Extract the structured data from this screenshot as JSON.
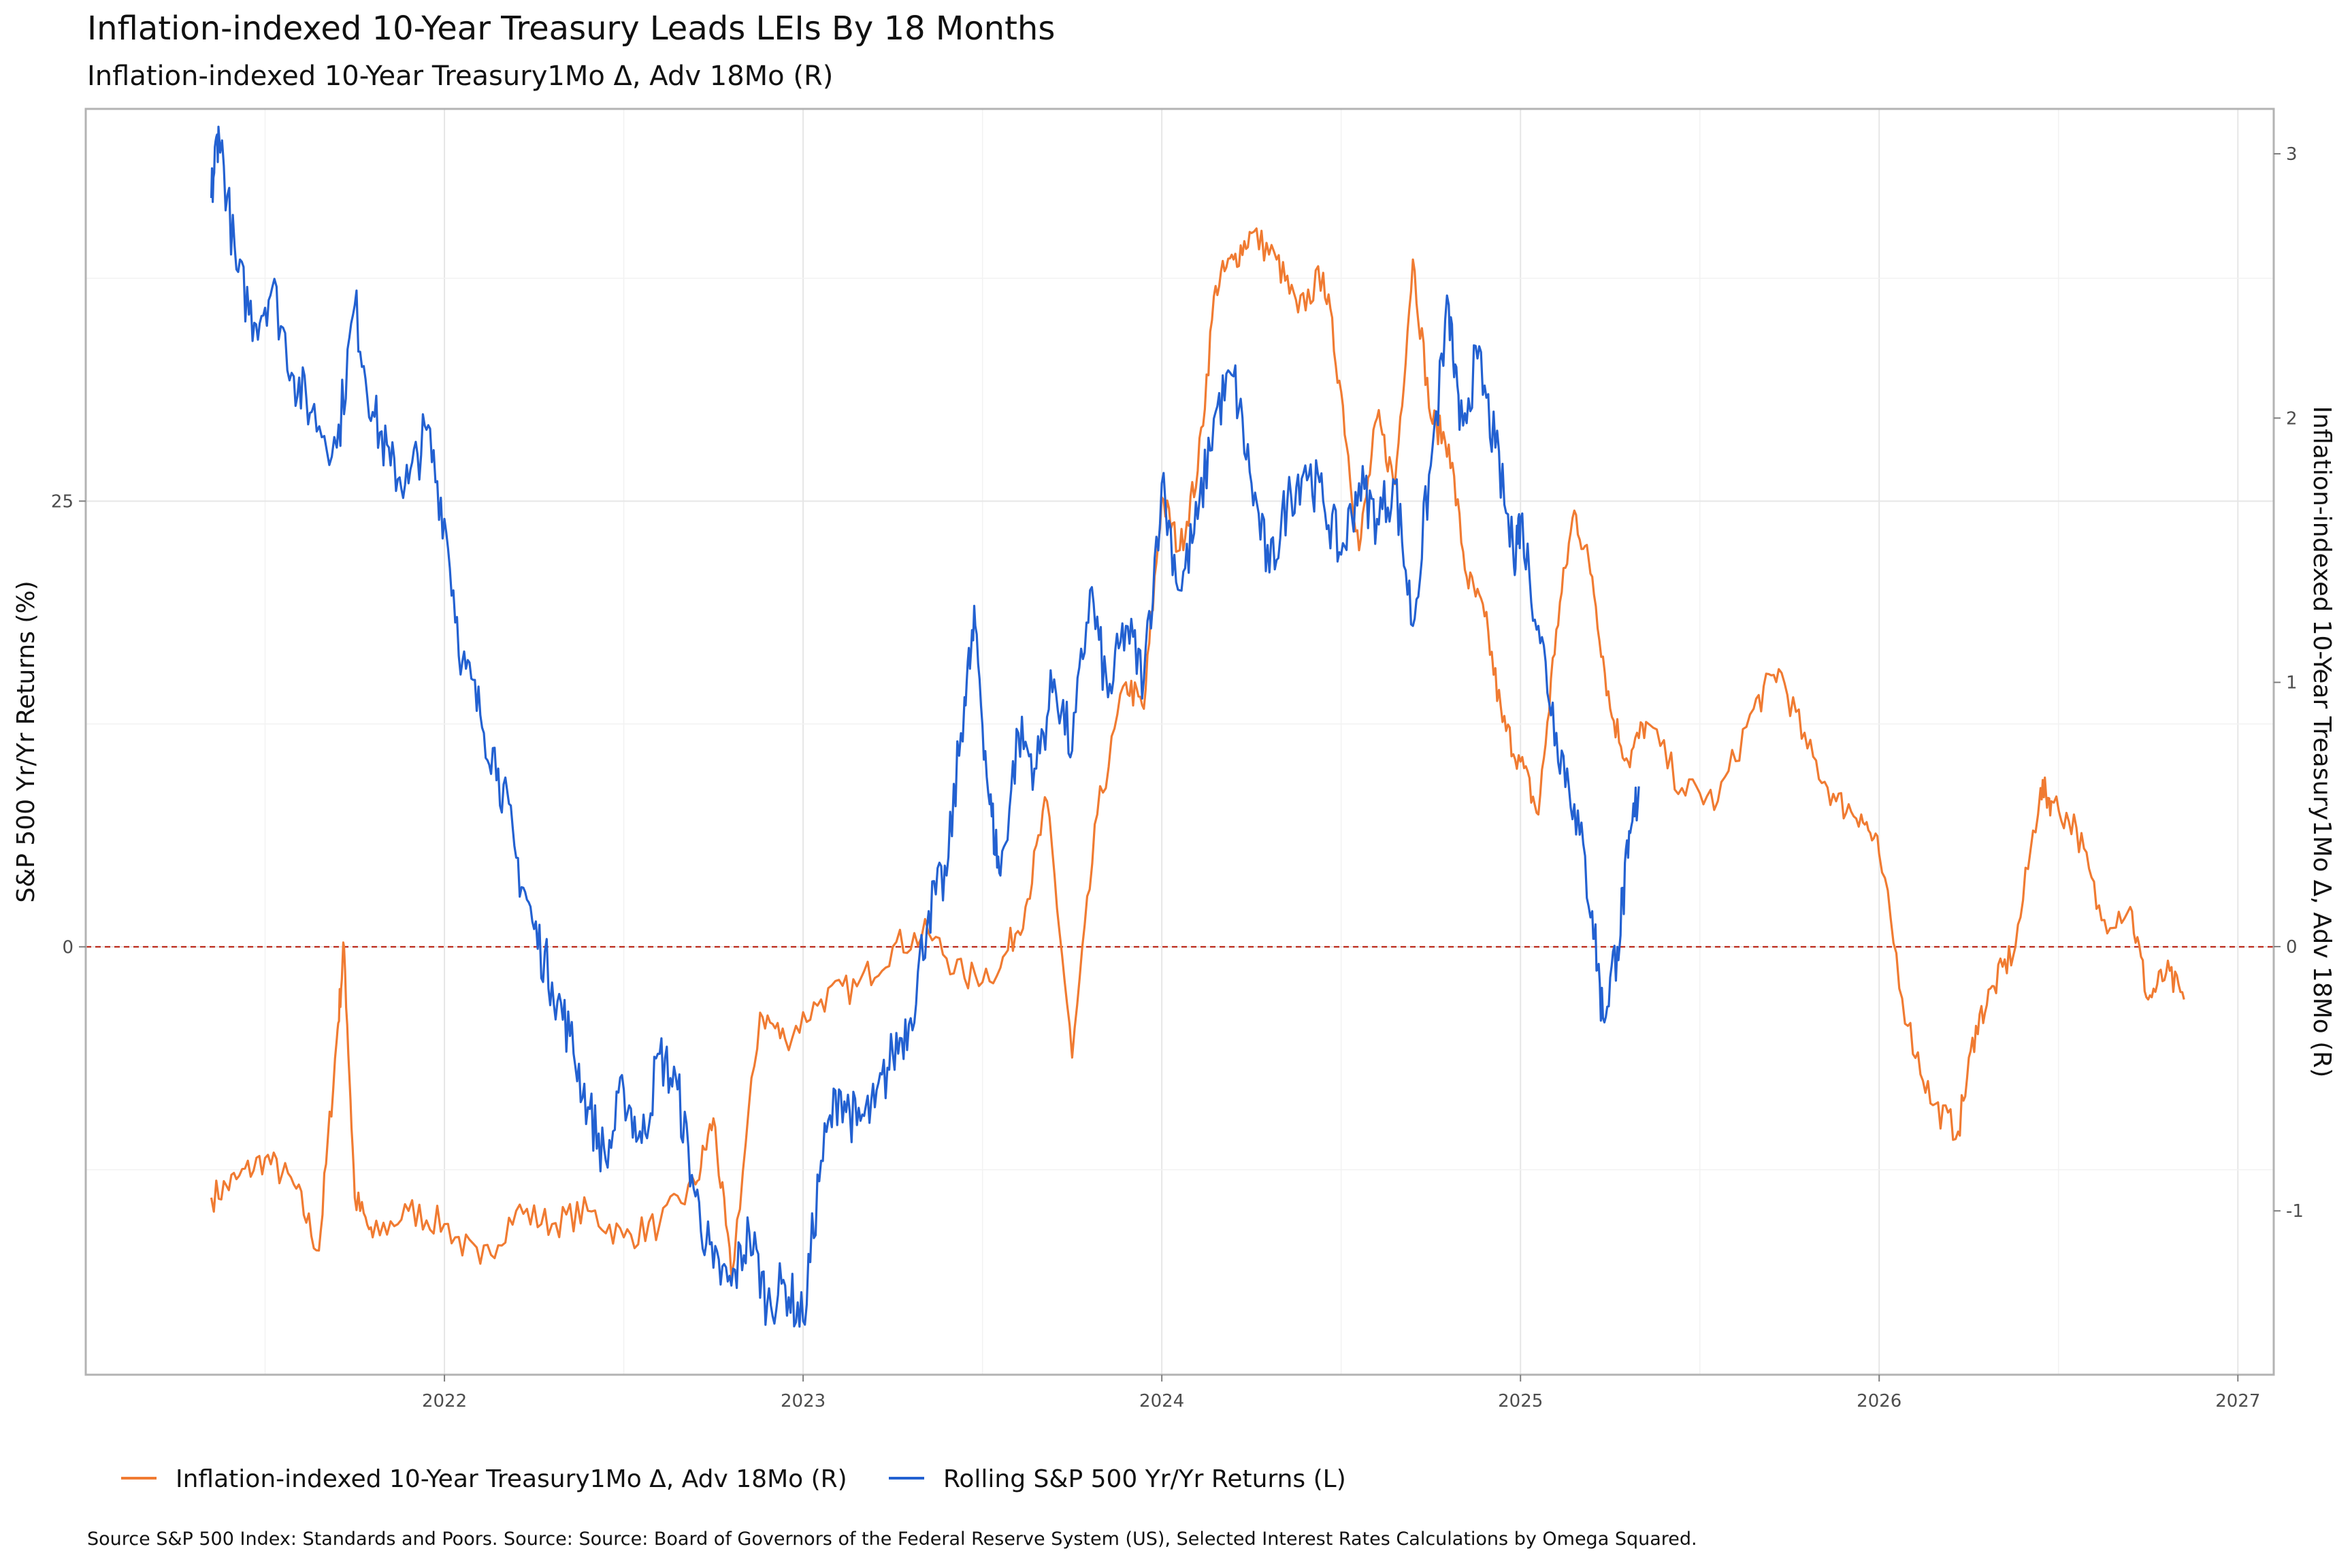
{
  "chart_data": {
    "type": "line",
    "title": "Inflation-indexed 10-Year Treasury  Leads LEIs By  18  Months",
    "subtitle": "Inflation-indexed 10-Year Treasury1Mo Δ, Adv 18Mo (R)",
    "ylabel_left": "S&P 500 Yr/Yr Returns (%)",
    "ylabel_right": "Inflation-indexed 10-Year Treasury1Mo Δ, Adv 18Mo (R)",
    "caption": "Source S&P 500 Index: Standards and Poors. Source: Source: Board of Governors of the Federal Reserve System (US), Selected Interest Rates Calculations by Omega Squared.",
    "x_range": [
      2021.0,
      2027.1
    ],
    "x_ticks": [
      "2022",
      "2023",
      "2024",
      "2025",
      "2026",
      "2027"
    ],
    "y_left_range": [
      -24,
      47
    ],
    "y_left_ticks": [
      "0",
      "25"
    ],
    "y_right_range": [
      -1.62,
      3.17
    ],
    "y_right_ticks": [
      "-1",
      "0",
      "1",
      "2",
      "3"
    ],
    "zero_line_color": "#c0392b",
    "grid": true,
    "legend_position": "bottom",
    "series": [
      {
        "name": "Inflation-indexed 10-Year Treasury1Mo Δ, Adv 18Mo (R)",
        "axis": "right",
        "color": "#f07b32",
        "x": [
          2021.35,
          2021.42,
          2021.5,
          2021.58,
          2021.65,
          2021.7,
          2021.72,
          2021.75,
          2021.8,
          2021.9,
          2022.0,
          2022.1,
          2022.2,
          2022.3,
          2022.4,
          2022.5,
          2022.6,
          2022.7,
          2022.75,
          2022.8,
          2022.88,
          2022.95,
          2023.05,
          2023.15,
          2023.25,
          2023.35,
          2023.45,
          2023.55,
          2023.62,
          2023.68,
          2023.75,
          2023.82,
          2023.9,
          2023.95,
          2024.0,
          2024.05,
          2024.1,
          2024.15,
          2024.2,
          2024.25,
          2024.32,
          2024.38,
          2024.45,
          2024.5,
          2024.55,
          2024.6,
          2024.65,
          2024.7,
          2024.75,
          2024.8,
          2024.85,
          2024.9,
          2024.95,
          2025.0,
          2025.05,
          2025.1,
          2025.15,
          2025.2,
          2025.25,
          2025.3,
          2025.35,
          2025.45,
          2025.55,
          2025.65,
          2025.72,
          2025.8,
          2025.88,
          2025.95,
          2026.0,
          2026.08,
          2026.15,
          2026.22,
          2026.27,
          2026.32,
          2026.38,
          2026.45,
          2026.48,
          2026.55,
          2026.62,
          2026.7,
          2026.75,
          2026.8,
          2026.85
        ],
        "y": [
          -0.95,
          -0.88,
          -0.8,
          -0.9,
          -1.15,
          -0.35,
          0.0,
          -0.95,
          -1.1,
          -1.0,
          -1.05,
          -1.2,
          -1.0,
          -1.05,
          -1.0,
          -1.1,
          -1.05,
          -0.9,
          -0.65,
          -1.25,
          -0.25,
          -0.35,
          -0.2,
          -0.15,
          0.0,
          0.05,
          -0.12,
          -0.08,
          0.15,
          0.55,
          -0.42,
          0.5,
          1.0,
          0.9,
          1.7,
          1.5,
          1.8,
          2.5,
          2.6,
          2.7,
          2.6,
          2.4,
          2.55,
          2.1,
          1.5,
          2.0,
          1.75,
          2.6,
          2.0,
          1.9,
          1.4,
          1.25,
          0.85,
          0.7,
          0.5,
          1.2,
          1.65,
          1.4,
          0.9,
          0.7,
          0.85,
          0.6,
          0.55,
          0.9,
          1.05,
          0.75,
          0.55,
          0.5,
          0.35,
          -0.3,
          -0.6,
          -0.7,
          -0.3,
          -0.15,
          0.0,
          0.6,
          0.55,
          0.45,
          0.1,
          0.15,
          -0.2,
          -0.1,
          -0.2
        ]
      },
      {
        "name": "Rolling S&P 500 Yr/Yr Returns (L)",
        "axis": "left",
        "color": "#2361d1",
        "x": [
          2021.35,
          2021.37,
          2021.42,
          2021.47,
          2021.52,
          2021.58,
          2021.63,
          2021.7,
          2021.75,
          2021.8,
          2021.85,
          2021.9,
          2021.95,
          2022.0,
          2022.05,
          2022.1,
          2022.15,
          2022.2,
          2022.25,
          2022.3,
          2022.35,
          2022.4,
          2022.45,
          2022.5,
          2022.55,
          2022.6,
          2022.65,
          2022.7,
          2022.75,
          2022.8,
          2022.85,
          2022.9,
          2022.95,
          2023.0,
          2023.05,
          2023.1,
          2023.15,
          2023.2,
          2023.25,
          2023.3,
          2023.35,
          2023.4,
          2023.45,
          2023.48,
          2023.52,
          2023.55,
          2023.6,
          2023.65,
          2023.7,
          2023.75,
          2023.8,
          2023.85,
          2023.9,
          2023.95,
          2024.0,
          2024.05,
          2024.1,
          2024.15,
          2024.2,
          2024.25,
          2024.3,
          2024.35,
          2024.4,
          2024.45,
          2024.5,
          2024.55,
          2024.6,
          2024.65,
          2024.7,
          2024.75,
          2024.8,
          2024.83,
          2024.88,
          2024.93,
          2024.98,
          2025.0,
          2025.05,
          2025.1,
          2025.15,
          2025.2,
          2025.23,
          2025.27,
          2025.3,
          2025.33
        ],
        "y": [
          42.0,
          46.0,
          38.0,
          35.0,
          37.0,
          32.0,
          30.0,
          28.0,
          36.0,
          30.0,
          27.0,
          26.0,
          29.0,
          24.0,
          16.0,
          13.0,
          10.0,
          5.0,
          1.0,
          -2.0,
          -5.0,
          -9.0,
          -12.0,
          -8.0,
          -11.0,
          -6.0,
          -8.0,
          -14.0,
          -18.0,
          -19.0,
          -16.0,
          -20.0,
          -19.0,
          -21.0,
          -12.0,
          -8.0,
          -10.0,
          -9.0,
          -6.0,
          -4.0,
          2.0,
          4.0,
          14.0,
          18.0,
          8.0,
          4.0,
          12.0,
          10.0,
          15.0,
          11.0,
          20.0,
          14.0,
          18.0,
          15.0,
          26.0,
          20.0,
          24.0,
          30.0,
          32.0,
          26.0,
          21.0,
          25.0,
          27.0,
          25.0,
          22.0,
          26.0,
          24.0,
          26.0,
          18.0,
          27.0,
          36.0,
          29.0,
          33.0,
          28.0,
          22.0,
          24.0,
          18.0,
          12.0,
          8.0,
          2.0,
          -4.0,
          0.0,
          5.0,
          9.0
        ]
      }
    ]
  }
}
